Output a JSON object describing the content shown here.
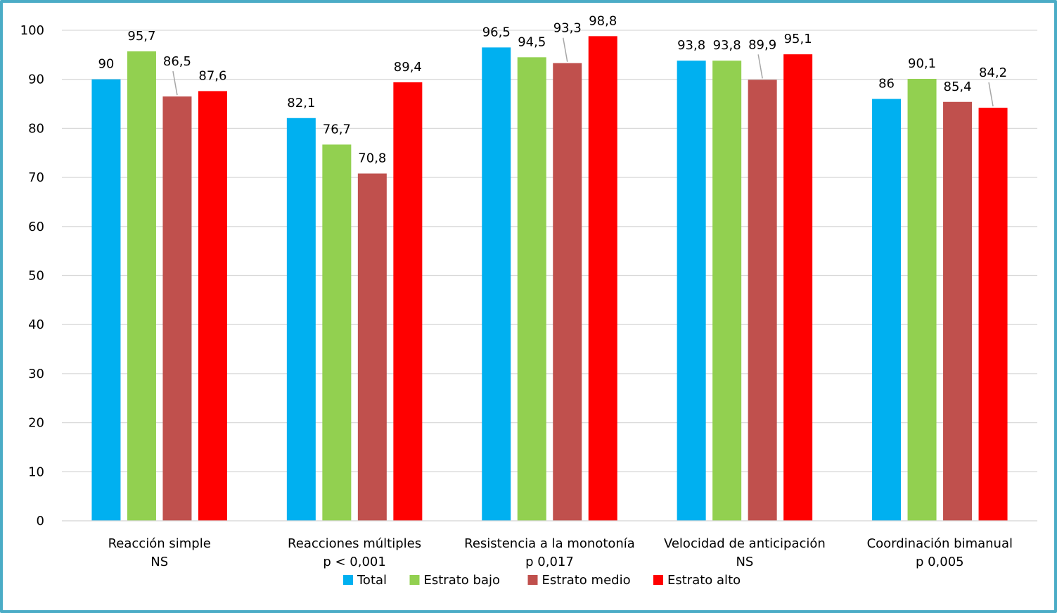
{
  "chart_data": {
    "type": "bar",
    "categories": [
      [
        "Reacción simple",
        "NS"
      ],
      [
        "Reacciones múltiples",
        "p < 0,001"
      ],
      [
        "Resistencia a la monotonía",
        "p 0,017"
      ],
      [
        "Velocidad de anticipación",
        "NS"
      ],
      [
        "Coordinación bimanual",
        "p 0,005"
      ]
    ],
    "series": [
      {
        "name": "Total",
        "color": "#00b0f0",
        "values": [
          90,
          82.1,
          96.5,
          93.8,
          86
        ],
        "labels": [
          "90",
          "82,1",
          "96,5",
          "93,8",
          "86"
        ]
      },
      {
        "name": "Estrato bajo",
        "color": "#92d050",
        "values": [
          95.7,
          76.7,
          94.5,
          93.8,
          90.1
        ],
        "labels": [
          "95,7",
          "76,7",
          "94,5",
          "93,8",
          "90,1"
        ]
      },
      {
        "name": "Estrato medio",
        "color": "#c0504d",
        "values": [
          86.5,
          70.8,
          93.3,
          89.9,
          85.4
        ],
        "labels": [
          "86,5",
          "70,8",
          "93,3",
          "89,9",
          "85,4"
        ]
      },
      {
        "name": "Estrato alto",
        "color": "#ff0000",
        "values": [
          87.6,
          89.4,
          98.8,
          95.1,
          84.2
        ],
        "labels": [
          "87,6",
          "89,4",
          "98,8",
          "95,1",
          "84,2"
        ]
      }
    ],
    "ylim": [
      0,
      100
    ],
    "yticks": [
      0,
      10,
      20,
      30,
      40,
      50,
      60,
      70,
      80,
      90,
      100
    ],
    "grid": true,
    "legend_position": "bottom",
    "frame_color": "#4bacc6"
  }
}
